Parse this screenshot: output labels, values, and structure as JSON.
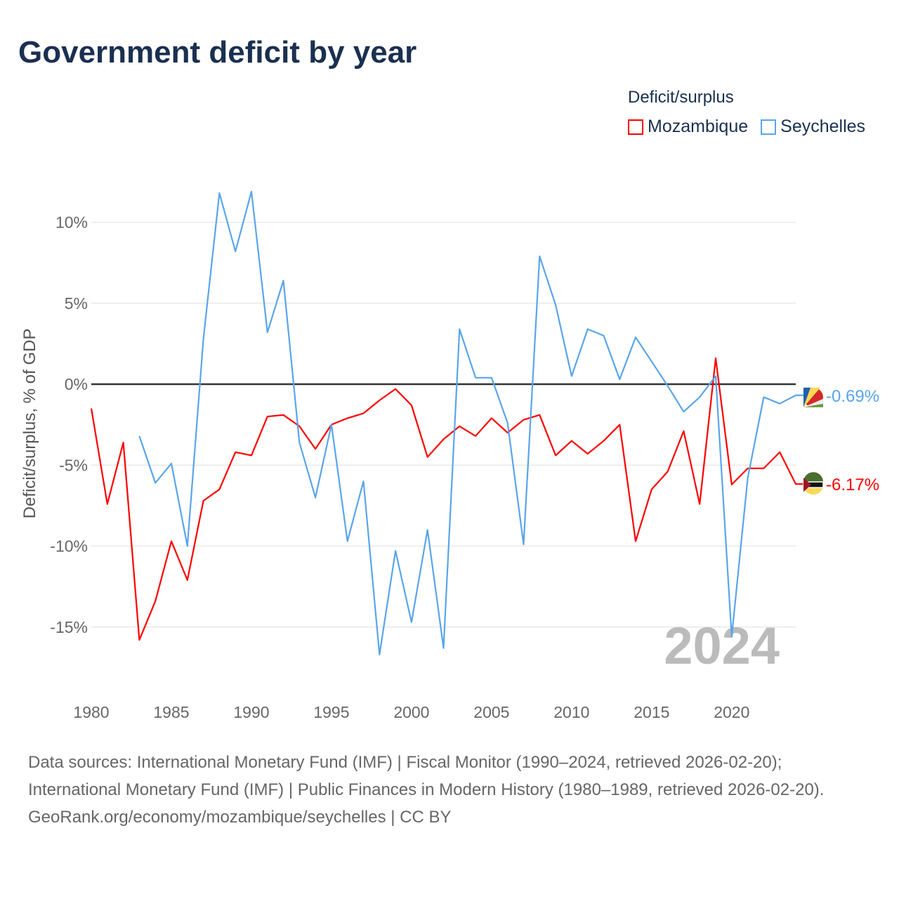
{
  "title": "Government deficit by year",
  "legend": {
    "title": "Deficit/surplus",
    "items": [
      {
        "label": "Mozambique",
        "color": "#ff0000"
      },
      {
        "label": "Seychelles",
        "color": "#5aa5ea"
      }
    ]
  },
  "year_watermark": "2024",
  "sources": {
    "line1": "Data sources: International Monetary Fund (IMF) | Fiscal Monitor (1990–2024, retrieved 2026-02-20); International Monetary Fund (IMF) | Public Finances in Modern History (1980–1989, retrieved 2026-02-20).",
    "line2": "GeoRank.org/economy/mozambique/seychelles | CC BY"
  },
  "chart_data": {
    "type": "line",
    "title": "Government deficit by year",
    "xlabel": "",
    "ylabel": "Deficit/surplus, % of GDP",
    "xlim": [
      1980,
      2024
    ],
    "ylim": [
      -18,
      12
    ],
    "x_ticks": [
      1980,
      1985,
      1990,
      1995,
      2000,
      2005,
      2010,
      2015,
      2020
    ],
    "y_ticks": [
      10,
      5,
      0,
      -5,
      -10,
      -15
    ],
    "y_tick_labels": [
      "10%",
      "5%",
      "0%",
      "-5%",
      "-10%",
      "-15%"
    ],
    "grid": true,
    "legend_position": "top-right",
    "series": [
      {
        "name": "Mozambique",
        "color": "#ff0000",
        "end_label": "-6.17%",
        "start_year": 1980,
        "values": [
          -1.5,
          -7.4,
          -3.6,
          -15.8,
          -13.4,
          -9.7,
          -12.1,
          -7.2,
          -6.5,
          -4.2,
          -4.4,
          -2.0,
          -1.9,
          -2.6,
          -4.0,
          -2.5,
          -2.1,
          -1.8,
          -1.0,
          -0.3,
          -1.3,
          -4.5,
          -3.4,
          -2.6,
          -3.2,
          -2.1,
          -3.0,
          -2.2,
          -1.9,
          -4.4,
          -3.5,
          -4.3,
          -3.5,
          -2.5,
          -9.7,
          -6.5,
          -5.4,
          -2.9,
          -7.4,
          1.6,
          -6.2,
          -5.2,
          -5.2,
          -4.2,
          -6.17
        ]
      },
      {
        "name": "Seychelles",
        "color": "#5aa5ea",
        "end_label": "-0.69%",
        "start_year": 1983,
        "values": [
          -3.2,
          -6.1,
          -4.9,
          -10.0,
          2.8,
          11.8,
          8.2,
          11.9,
          3.2,
          6.4,
          -3.6,
          -7.0,
          -2.5,
          -9.7,
          -6.0,
          -16.7,
          -10.3,
          -14.7,
          -9.0,
          -16.3,
          3.4,
          0.4,
          0.4,
          -2.4,
          -9.9,
          7.9,
          4.9,
          0.5,
          3.4,
          3.0,
          0.3,
          2.9,
          1.4,
          -0.1,
          -1.7,
          -0.8,
          0.5,
          -15.6,
          -5.8,
          -0.8,
          -1.2,
          -0.69
        ]
      }
    ]
  }
}
